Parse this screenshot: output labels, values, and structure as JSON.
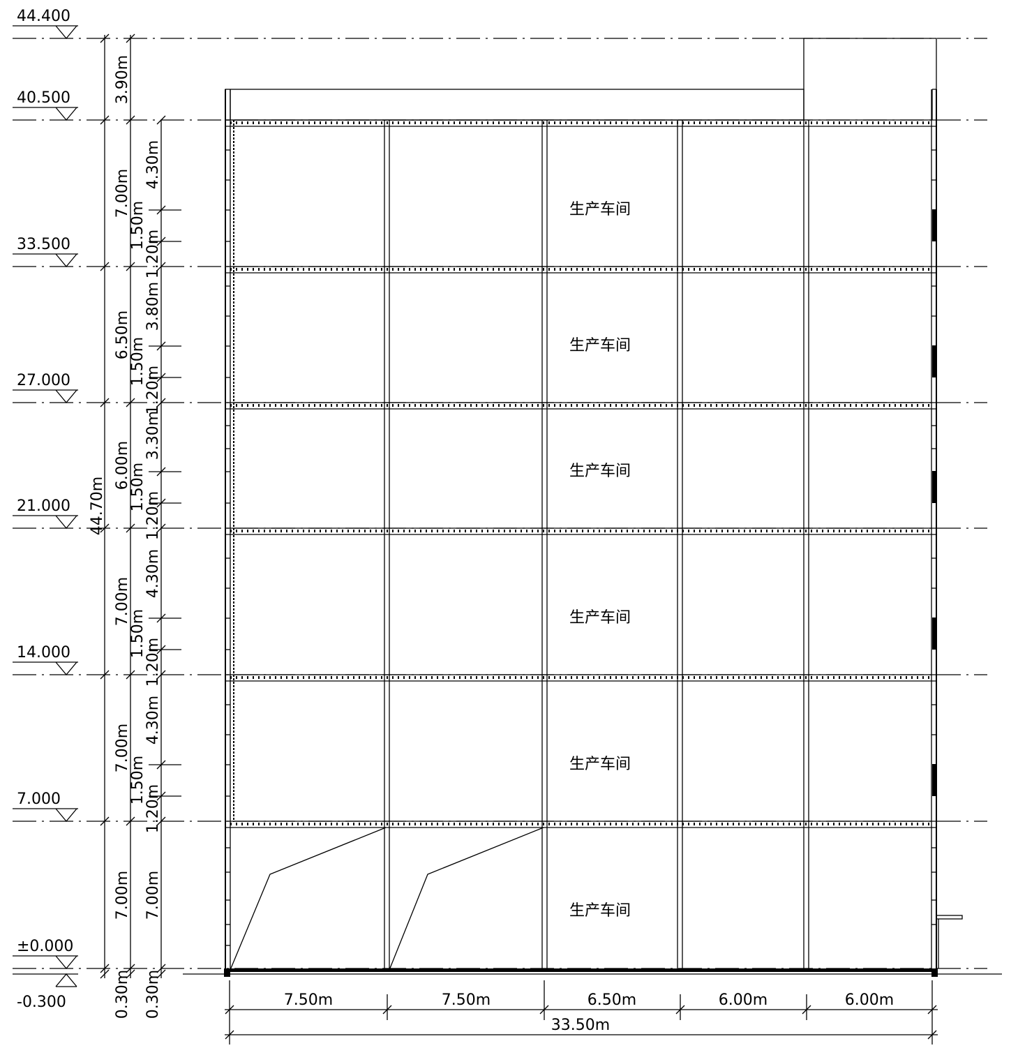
{
  "elevations": [
    "44.400",
    "40.500",
    "33.500",
    "27.000",
    "21.000",
    "14.000",
    "7.000",
    "±0.000",
    "-0.300"
  ],
  "dims_outer": [
    "3.90m",
    "7.00m",
    "6.50m",
    "6.00m",
    "7.00m",
    "7.00m",
    "7.00m",
    "0.30m"
  ],
  "dim_total_height": "44.70m",
  "dims_inner": {
    "floor6": [
      "4.30m",
      "1.50m",
      "1.20m"
    ],
    "floor5": [
      "3.80m",
      "1.50m",
      "1.20m"
    ],
    "floor4": [
      "3.30m",
      "1.50m",
      "1.20m"
    ],
    "floor3": [
      "4.30m",
      "1.50m",
      "1.20m"
    ],
    "floor2": [
      "4.30m",
      "1.50m",
      "1.20m"
    ],
    "floor1": [
      "7.00m"
    ],
    "base": [
      "0.30m"
    ]
  },
  "bay_widths": [
    "7.50m",
    "7.50m",
    "6.50m",
    "6.00m",
    "6.00m"
  ],
  "total_width": "33.50m",
  "room_labels": [
    "生产车间",
    "生产车间",
    "生产车间",
    "生产车间",
    "生产车间",
    "生产车间"
  ]
}
